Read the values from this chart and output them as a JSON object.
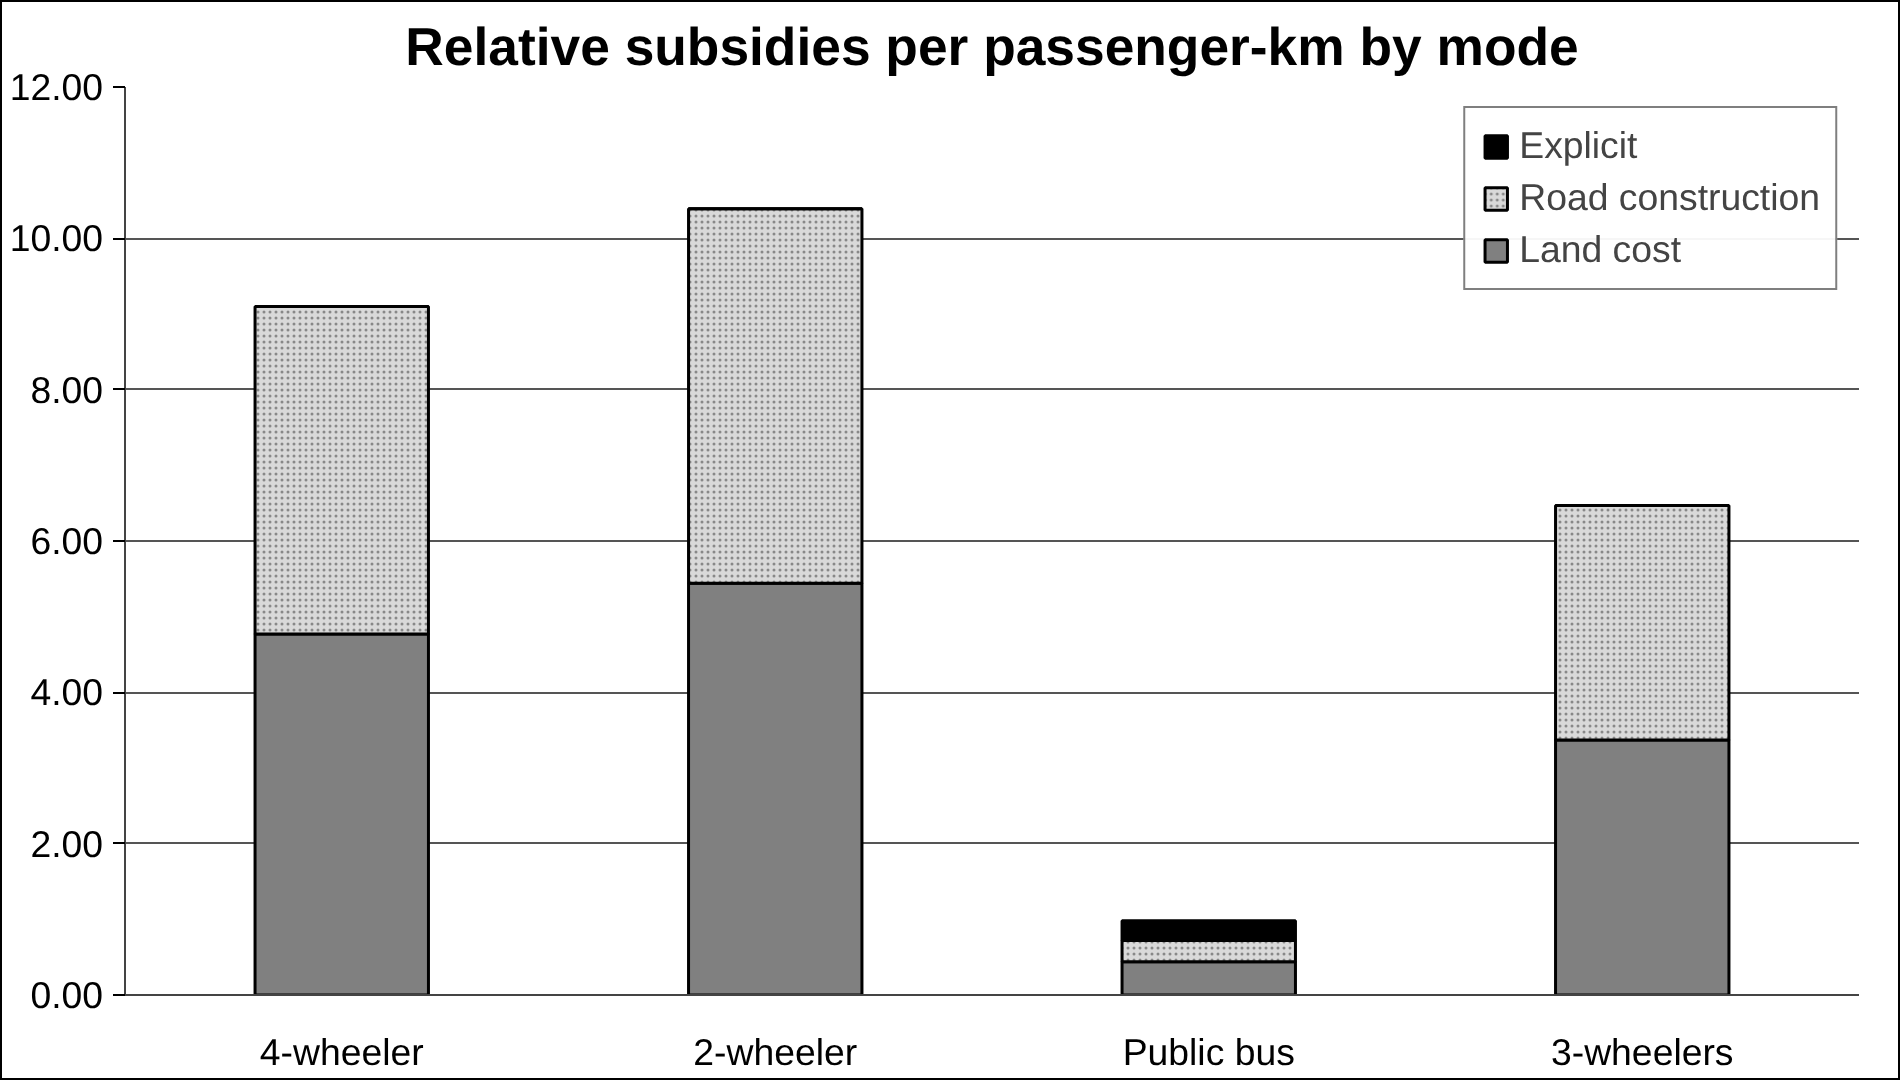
{
  "chart_data": {
    "type": "bar",
    "title": "Relative subsidies per passenger-km by mode",
    "categories": [
      "4-wheeler",
      "2-wheeler",
      "Public bus",
      "3-wheelers"
    ],
    "stacked": true,
    "series": [
      {
        "name": "Land cost",
        "color": "#808080",
        "values": [
          4.77,
          5.44,
          0.44,
          3.37
        ]
      },
      {
        "name": "Road construction",
        "color": "#d9d9d9",
        "values": [
          4.33,
          4.95,
          0.28,
          3.1
        ]
      },
      {
        "name": "Explicit",
        "color": "#000000",
        "values": [
          0,
          0,
          0.26,
          0
        ]
      }
    ],
    "ylim": [
      0,
      12
    ],
    "yticks": [
      {
        "value": 0,
        "label": "0.00"
      },
      {
        "value": 2,
        "label": "2.00"
      },
      {
        "value": 4,
        "label": "4.00"
      },
      {
        "value": 6,
        "label": "6.00"
      },
      {
        "value": 8,
        "label": "8.00"
      },
      {
        "value": 10,
        "label": "10.00"
      },
      {
        "value": 12,
        "label": "12.00"
      }
    ],
    "grid": "y",
    "legend": "top right"
  }
}
